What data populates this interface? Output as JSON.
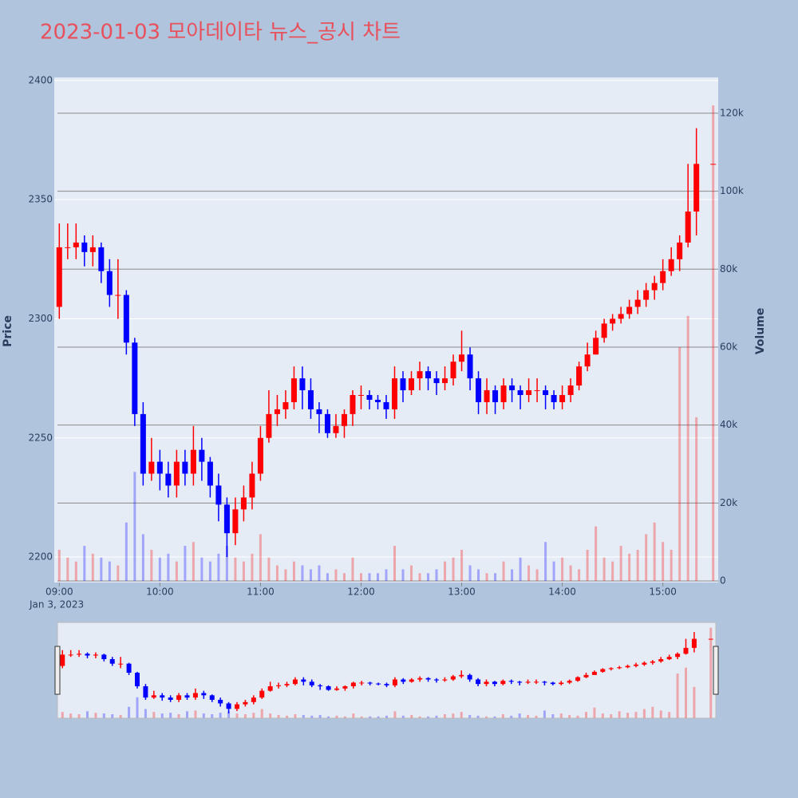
{
  "chart_data": {
    "type": "candlestick",
    "title": "2023-01-03 모아데이타 뉴스_공시 차트",
    "y_axis_label": "Price",
    "y2_axis_label": "Volume",
    "x_date_label": "Jan 3, 2023",
    "increasing_color": "#ff0000",
    "decreasing_color": "#0000ff",
    "x": [
      "2023-01-03 09:00",
      "2023-01-03 09:05",
      "2023-01-03 09:10",
      "2023-01-03 09:15",
      "2023-01-03 09:20",
      "2023-01-03 09:25",
      "2023-01-03 09:30",
      "2023-01-03 09:35",
      "2023-01-03 09:40",
      "2023-01-03 09:45",
      "2023-01-03 09:50",
      "2023-01-03 09:55",
      "2023-01-03 10:00",
      "2023-01-03 10:05",
      "2023-01-03 10:10",
      "2023-01-03 10:15",
      "2023-01-03 10:20",
      "2023-01-03 10:25",
      "2023-01-03 10:30",
      "2023-01-03 10:35",
      "2023-01-03 10:40",
      "2023-01-03 10:45",
      "2023-01-03 10:50",
      "2023-01-03 10:55",
      "2023-01-03 11:00",
      "2023-01-03 11:05",
      "2023-01-03 11:10",
      "2023-01-03 11:15",
      "2023-01-03 11:20",
      "2023-01-03 11:25",
      "2023-01-03 11:30",
      "2023-01-03 11:35",
      "2023-01-03 11:40",
      "2023-01-03 11:45",
      "2023-01-03 11:50",
      "2023-01-03 11:55",
      "2023-01-03 12:00",
      "2023-01-03 12:05",
      "2023-01-03 12:10",
      "2023-01-03 12:15",
      "2023-01-03 12:20",
      "2023-01-03 12:25",
      "2023-01-03 12:30",
      "2023-01-03 12:35",
      "2023-01-03 12:40",
      "2023-01-03 12:45",
      "2023-01-03 12:50",
      "2023-01-03 12:55",
      "2023-01-03 13:00",
      "2023-01-03 13:05",
      "2023-01-03 13:10",
      "2023-01-03 13:15",
      "2023-01-03 13:20",
      "2023-01-03 13:25",
      "2023-01-03 13:30",
      "2023-01-03 13:35",
      "2023-01-03 13:40",
      "2023-01-03 13:45",
      "2023-01-03 13:50",
      "2023-01-03 13:55",
      "2023-01-03 14:00",
      "2023-01-03 14:05",
      "2023-01-03 14:10",
      "2023-01-03 14:15",
      "2023-01-03 14:20",
      "2023-01-03 14:25",
      "2023-01-03 14:30",
      "2023-01-03 14:35",
      "2023-01-03 14:40",
      "2023-01-03 14:45",
      "2023-01-03 14:50",
      "2023-01-03 14:55",
      "2023-01-03 15:00",
      "2023-01-03 15:05",
      "2023-01-03 15:10",
      "2023-01-03 15:15",
      "2023-01-03 15:20",
      "2023-01-03 15:30"
    ],
    "open": [
      2305,
      2330,
      2330,
      2332,
      2328,
      2330,
      2320,
      2310,
      2310,
      2290,
      2260,
      2235,
      2240,
      2235,
      2230,
      2240,
      2235,
      2245,
      2240,
      2230,
      2222,
      2210,
      2220,
      2225,
      2235,
      2250,
      2260,
      2262,
      2265,
      2275,
      2270,
      2262,
      2260,
      2252,
      2255,
      2260,
      2268,
      2268,
      2266,
      2265,
      2262,
      2275,
      2270,
      2275,
      2278,
      2275,
      2273,
      2275,
      2282,
      2285,
      2275,
      2265,
      2270,
      2265,
      2272,
      2270,
      2268,
      2270,
      2270,
      2268,
      2265,
      2268,
      2272,
      2280,
      2285,
      2292,
      2298,
      2300,
      2302,
      2305,
      2308,
      2312,
      2315,
      2320,
      2325,
      2332,
      2345,
      2365
    ],
    "high": [
      2340,
      2340,
      2340,
      2335,
      2335,
      2332,
      2325,
      2325,
      2312,
      2292,
      2265,
      2250,
      2245,
      2240,
      2245,
      2245,
      2255,
      2250,
      2242,
      2235,
      2225,
      2225,
      2230,
      2240,
      2255,
      2270,
      2268,
      2270,
      2280,
      2280,
      2275,
      2265,
      2262,
      2260,
      2262,
      2270,
      2272,
      2270,
      2268,
      2268,
      2280,
      2278,
      2278,
      2282,
      2280,
      2278,
      2280,
      2285,
      2295,
      2288,
      2278,
      2275,
      2272,
      2275,
      2275,
      2272,
      2275,
      2275,
      2272,
      2270,
      2272,
      2275,
      2282,
      2290,
      2295,
      2300,
      2302,
      2305,
      2308,
      2312,
      2315,
      2318,
      2325,
      2330,
      2335,
      2365,
      2380,
      2365
    ],
    "low": [
      2300,
      2325,
      2325,
      2322,
      2322,
      2315,
      2305,
      2300,
      2285,
      2255,
      2230,
      2232,
      2228,
      2225,
      2225,
      2230,
      2230,
      2232,
      2225,
      2215,
      2200,
      2205,
      2215,
      2220,
      2232,
      2248,
      2255,
      2258,
      2262,
      2262,
      2258,
      2252,
      2250,
      2250,
      2250,
      2255,
      2262,
      2262,
      2262,
      2258,
      2258,
      2265,
      2268,
      2270,
      2270,
      2268,
      2270,
      2272,
      2278,
      2270,
      2260,
      2260,
      2260,
      2262,
      2265,
      2262,
      2265,
      2265,
      2262,
      2262,
      2262,
      2265,
      2270,
      2278,
      2285,
      2290,
      2295,
      2298,
      2300,
      2302,
      2305,
      2308,
      2312,
      2318,
      2320,
      2330,
      2335,
      2365
    ],
    "close": [
      2330,
      2330,
      2332,
      2328,
      2330,
      2320,
      2310,
      2310,
      2290,
      2260,
      2235,
      2240,
      2235,
      2230,
      2240,
      2235,
      2245,
      2240,
      2230,
      2222,
      2210,
      2220,
      2225,
      2235,
      2250,
      2260,
      2262,
      2265,
      2275,
      2270,
      2262,
      2260,
      2252,
      2255,
      2260,
      2268,
      2268,
      2266,
      2265,
      2262,
      2275,
      2270,
      2275,
      2278,
      2275,
      2273,
      2275,
      2282,
      2285,
      2275,
      2265,
      2270,
      2265,
      2272,
      2270,
      2268,
      2270,
      2270,
      2268,
      2265,
      2268,
      2272,
      2280,
      2285,
      2292,
      2298,
      2300,
      2302,
      2305,
      2308,
      2312,
      2315,
      2320,
      2325,
      2332,
      2345,
      2365,
      2365
    ],
    "volume": [
      8000,
      6000,
      5000,
      9000,
      7000,
      6000,
      5000,
      4000,
      15000,
      28000,
      12000,
      8000,
      6000,
      7000,
      5000,
      9000,
      10000,
      6000,
      5000,
      7000,
      9000,
      6000,
      5000,
      7000,
      12000,
      6000,
      4000,
      3000,
      5000,
      4000,
      3000,
      4000,
      2000,
      3000,
      2000,
      6000,
      2000,
      2000,
      2000,
      3000,
      9000,
      3000,
      4000,
      2000,
      2000,
      3000,
      5000,
      6000,
      8000,
      4000,
      3000,
      2000,
      2000,
      5000,
      3000,
      6000,
      4000,
      3000,
      10000,
      5000,
      6000,
      4000,
      3000,
      8000,
      14000,
      6000,
      5000,
      9000,
      7000,
      8000,
      12000,
      15000,
      10000,
      8000,
      60000,
      68000,
      42000,
      122000
    ],
    "xlim": [
      "2023-01-03 08:57",
      "2023-01-03 15:33"
    ],
    "xticks": [
      {
        "value": "2023-01-03 09:00",
        "label": "09:00"
      },
      {
        "value": "2023-01-03 10:00",
        "label": "10:00"
      },
      {
        "value": "2023-01-03 11:00",
        "label": "11:00"
      },
      {
        "value": "2023-01-03 12:00",
        "label": "12:00"
      },
      {
        "value": "2023-01-03 13:00",
        "label": "13:00"
      },
      {
        "value": "2023-01-03 14:00",
        "label": "14:00"
      },
      {
        "value": "2023-01-03 15:00",
        "label": "15:00"
      }
    ],
    "ylim": [
      2189.3,
      2401.3
    ],
    "yticks": [
      2200,
      2250,
      2300,
      2350,
      2400
    ],
    "y2lim": [
      -400,
      129200
    ],
    "y2ticks": [
      0,
      {
        "value": 20000,
        "label": "20k"
      },
      {
        "value": 40000,
        "label": "40k"
      },
      {
        "value": 60000,
        "label": "60k"
      },
      {
        "value": 80000,
        "label": "80k"
      },
      {
        "value": 100000,
        "label": "100k"
      },
      {
        "value": 120000,
        "label": "120k"
      }
    ],
    "grid": true,
    "rangeslider": true
  }
}
